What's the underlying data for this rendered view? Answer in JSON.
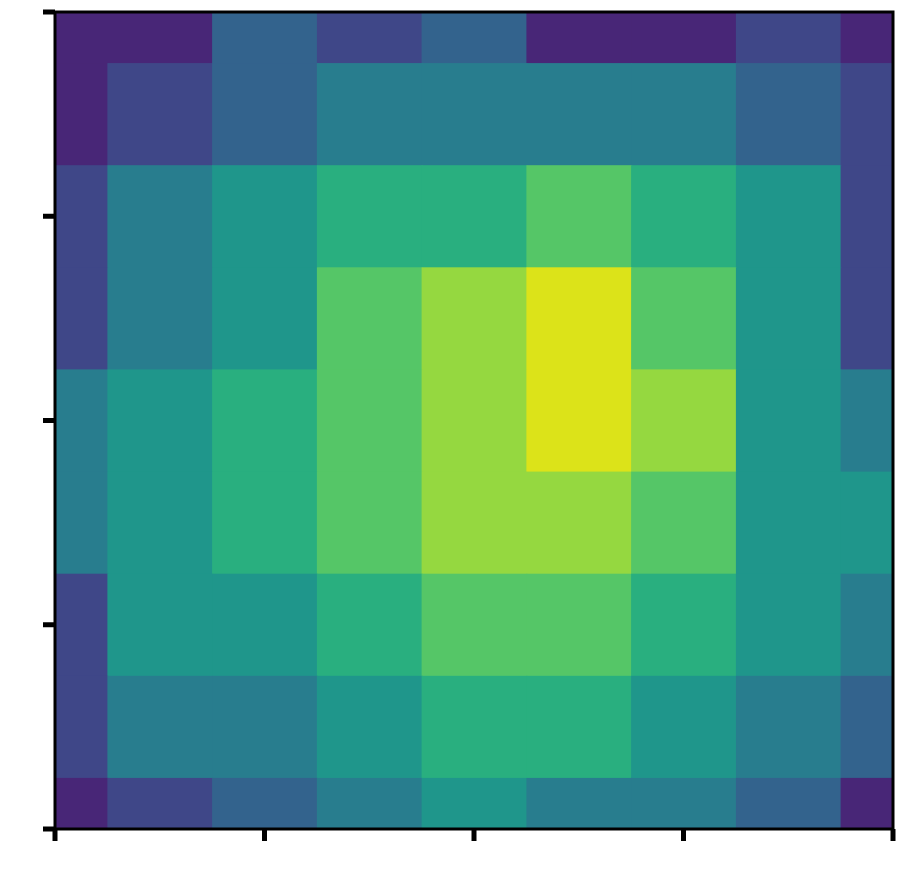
{
  "chart_data": {
    "type": "contour",
    "title": "",
    "xlabel": "",
    "ylabel": "",
    "xlim": [
      0,
      4
    ],
    "ylim": [
      0,
      4
    ],
    "x_ticks": [
      0,
      1,
      2,
      3,
      4
    ],
    "y_ticks": [
      0,
      1,
      2,
      3,
      4
    ],
    "x_tick_labels": [],
    "y_tick_labels": [],
    "grid": false,
    "colormap": "viridis",
    "level_colors": [
      "#440154",
      "#482677",
      "#3f4788",
      "#33638d",
      "#287d8e",
      "#1f968b",
      "#29af7f",
      "#55c667",
      "#95d840",
      "#dce319"
    ],
    "z_grid": [
      [
        1.0,
        1.0,
        3.0,
        2.5,
        3.0,
        1.5,
        1.5,
        2.0,
        1.2
      ],
      [
        1.5,
        2.0,
        3.5,
        4.0,
        4.5,
        4.5,
        4.0,
        3.0,
        2.0
      ],
      [
        2.0,
        4.0,
        5.5,
        6.0,
        6.5,
        7.0,
        6.5,
        5.0,
        2.0
      ],
      [
        2.5,
        4.0,
        5.5,
        7.0,
        8.0,
        9.0,
        7.5,
        5.0,
        2.5
      ],
      [
        4.0,
        5.0,
        6.0,
        7.0,
        8.5,
        9.0,
        8.0,
        5.5,
        4.0
      ],
      [
        4.0,
        5.5,
        6.0,
        7.5,
        8.0,
        8.0,
        7.5,
        5.5,
        5.0
      ],
      [
        2.5,
        5.0,
        5.5,
        6.5,
        7.5,
        7.0,
        6.0,
        5.5,
        4.0
      ],
      [
        2.0,
        4.0,
        4.5,
        5.5,
        6.5,
        6.0,
        5.5,
        4.0,
        3.0
      ],
      [
        1.0,
        2.0,
        3.5,
        4.0,
        5.0,
        4.5,
        4.0,
        3.0,
        1.0
      ]
    ]
  }
}
